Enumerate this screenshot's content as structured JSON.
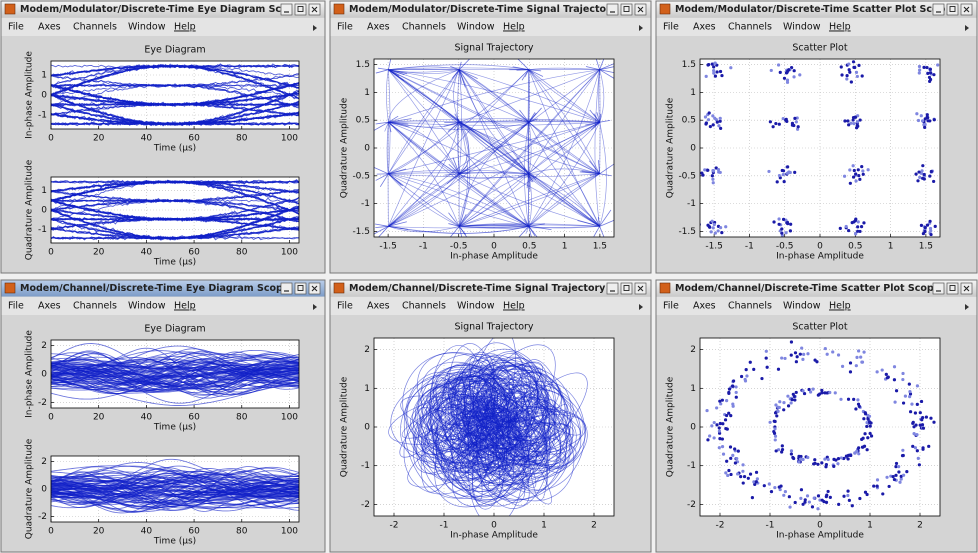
{
  "windows": [
    {
      "title": "Modem/Modulator/Discrete-Time Eye Diagram Sco",
      "menu": [
        "File",
        "Axes",
        "Channels",
        "Window",
        "Help"
      ],
      "plots": [
        {
          "type": "eye",
          "noisy": false,
          "title": "Eye Diagram",
          "xlabel": "Time (µs)",
          "ylabel": "In-phase Amplitude",
          "xlim": [
            0,
            104
          ],
          "ylim": [
            -1.7,
            1.7
          ],
          "xticks": [
            0,
            20,
            40,
            60,
            80,
            100
          ],
          "yticks": [
            -1,
            0,
            1
          ]
        },
        {
          "type": "eye",
          "noisy": false,
          "xlabel": "Time (µs)",
          "ylabel": "Quadrature Amplitude",
          "xlim": [
            0,
            104
          ],
          "ylim": [
            -1.7,
            1.7
          ],
          "xticks": [
            0,
            20,
            40,
            60,
            80,
            100
          ],
          "yticks": [
            -1,
            0,
            1
          ]
        }
      ]
    },
    {
      "title": "Modem/Modulator/Discrete-Time Signal Trajectory",
      "menu": [
        "File",
        "Axes",
        "Channels",
        "Window",
        "Help"
      ],
      "plots": [
        {
          "type": "trajectory",
          "noisy": false,
          "title": "Signal Trajectory",
          "xlabel": "In-phase Amplitude",
          "ylabel": "Quadrature Amplitude",
          "xlim": [
            -1.7,
            1.7
          ],
          "ylim": [
            -1.6,
            1.6
          ],
          "xticks": [
            -1.5,
            -1,
            -0.5,
            0,
            0.5,
            1,
            1.5
          ],
          "yticks": [
            -1.5,
            -1,
            -0.5,
            0,
            0.5,
            1,
            1.5
          ]
        }
      ]
    },
    {
      "title": "Modem/Modulator/Discrete-Time Scatter Plot Scop",
      "menu": [
        "File",
        "Axes",
        "Channels",
        "Window",
        "Help"
      ],
      "plots": [
        {
          "type": "scatter",
          "noisy": false,
          "title": "Scatter Plot",
          "xlabel": "In-phase Amplitude",
          "ylabel": "Quadrature Amplitude",
          "xlim": [
            -1.7,
            1.7
          ],
          "ylim": [
            -1.6,
            1.6
          ],
          "xticks": [
            -1.5,
            -1,
            -0.5,
            0,
            0.5,
            1,
            1.5
          ],
          "yticks": [
            -1.5,
            -1,
            -0.5,
            0,
            0.5,
            1,
            1.5
          ]
        }
      ]
    },
    {
      "title": "Modem/Channel/Discrete-Time Eye Diagram Scope",
      "menu": [
        "File",
        "Axes",
        "Channels",
        "Window",
        "Help"
      ],
      "plots": [
        {
          "type": "eye",
          "noisy": true,
          "title": "Eye Diagram",
          "xlabel": "Time (µs)",
          "ylabel": "In-phase Amplitude",
          "xlim": [
            0,
            104
          ],
          "ylim": [
            -2.4,
            2.4
          ],
          "xticks": [
            0,
            20,
            40,
            60,
            80,
            100
          ],
          "yticks": [
            -2,
            0,
            2
          ]
        },
        {
          "type": "eye",
          "noisy": true,
          "xlabel": "Time (µs)",
          "ylabel": "Quadrature Amplitude",
          "xlim": [
            0,
            104
          ],
          "ylim": [
            -2.4,
            2.4
          ],
          "xticks": [
            0,
            20,
            40,
            60,
            80,
            100
          ],
          "yticks": [
            -2,
            0,
            2
          ]
        }
      ]
    },
    {
      "title": "Modem/Channel/Discrete-Time Signal Trajectory S",
      "menu": [
        "File",
        "Axes",
        "Channels",
        "Window",
        "Help"
      ],
      "plots": [
        {
          "type": "trajectory",
          "noisy": true,
          "title": "Signal Trajectory",
          "xlabel": "In-phase Amplitude",
          "ylabel": "Quadrature Amplitude",
          "xlim": [
            -2.4,
            2.4
          ],
          "ylim": [
            -2.3,
            2.3
          ],
          "xticks": [
            -2,
            -1,
            0,
            1,
            2
          ],
          "yticks": [
            -2,
            -1,
            0,
            1,
            2
          ]
        }
      ]
    },
    {
      "title": "Modem/Channel/Discrete-Time Scatter Plot Scope",
      "menu": [
        "File",
        "Axes",
        "Channels",
        "Window",
        "Help"
      ],
      "plots": [
        {
          "type": "scatter",
          "noisy": true,
          "title": "Scatter Plot",
          "xlabel": "In-phase Amplitude",
          "ylabel": "Quadrature Amplitude",
          "xlim": [
            -2.4,
            2.4
          ],
          "ylim": [
            -2.3,
            2.3
          ],
          "xticks": [
            -2,
            -1,
            0,
            1,
            2
          ],
          "yticks": [
            -2,
            -1,
            0,
            1,
            2
          ]
        }
      ]
    }
  ]
}
